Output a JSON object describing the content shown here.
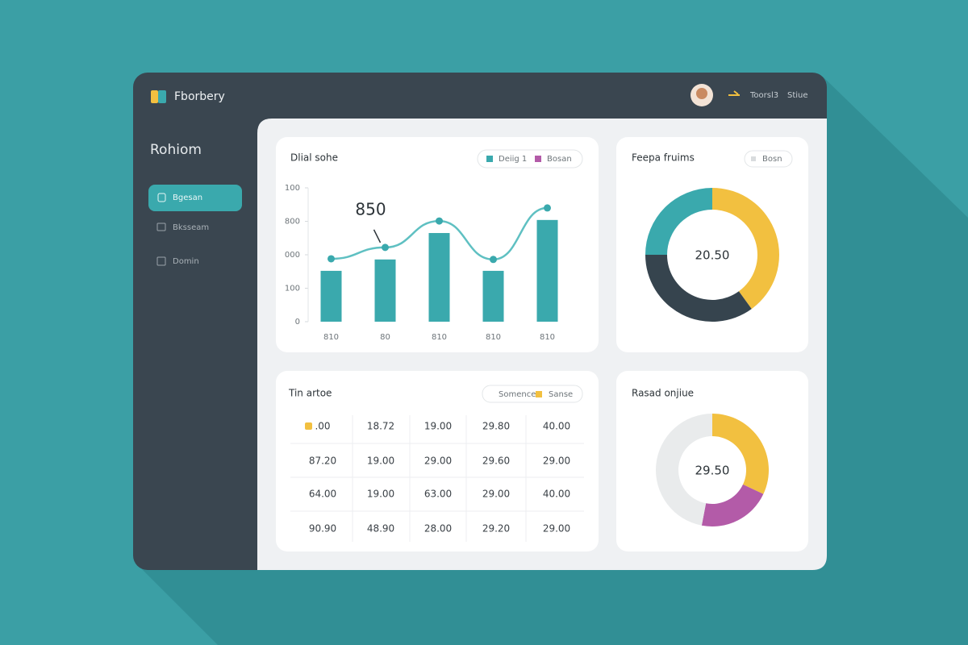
{
  "header": {
    "brand": "Fborbery",
    "user_label": "Toorsl3",
    "user_menu": "Stiue"
  },
  "sidebar": {
    "title": "Rohiom",
    "items": [
      "Bgesan",
      "Bksseam",
      "Domin"
    ]
  },
  "chart_data": [
    {
      "type": "bar",
      "title": "Dlial sohe",
      "annotation": "850",
      "categories": [
        "810",
        "80",
        "810",
        "810",
        "810"
      ],
      "series": [
        {
          "name": "Deiig 1",
          "color": "#3aa9ad",
          "values": [
            152,
            186,
            265,
            152,
            304
          ]
        },
        {
          "name": "Bosan",
          "color": "#b35ba8",
          "type": "line",
          "line_color": "#5fc0c2",
          "point_color": "#3aa9ad",
          "values": [
            188,
            222,
            301,
            186,
            340
          ]
        }
      ],
      "ylim": [
        0,
        400
      ],
      "yticks": [
        0,
        100,
        {
          "value": 200,
          "label": "000"
        },
        {
          "value": 300,
          "label": "800"
        },
        {
          "value": 400,
          "label": "100"
        }
      ]
    },
    {
      "type": "pie",
      "title": "Feepa fruims",
      "chip": "Bosn",
      "center_label": "20.50",
      "values": [
        40,
        35,
        25
      ],
      "colors": [
        "#f2c040",
        "#36444e",
        "#3aa9ad"
      ]
    },
    {
      "type": "pie",
      "title": "Rasad onjiue",
      "center_label": "29.50",
      "values": [
        32,
        21,
        47
      ],
      "colors": [
        "#f2c040",
        "#b35ba8",
        "#e9ebec"
      ]
    }
  ],
  "table": {
    "title": "Tin artoe",
    "legend": [
      "Somence",
      "Sanse"
    ],
    "rows": [
      [
        ".00",
        "18.72",
        "19.00",
        "29.80",
        "40.00"
      ],
      [
        "87.20",
        "19.00",
        "29.00",
        "29.60",
        "29.00"
      ],
      [
        "64.00",
        "19.00",
        "63.00",
        "29.00",
        "40.00"
      ],
      [
        "90.90",
        "48.90",
        "28.00",
        "29.20",
        "29.00"
      ]
    ]
  }
}
